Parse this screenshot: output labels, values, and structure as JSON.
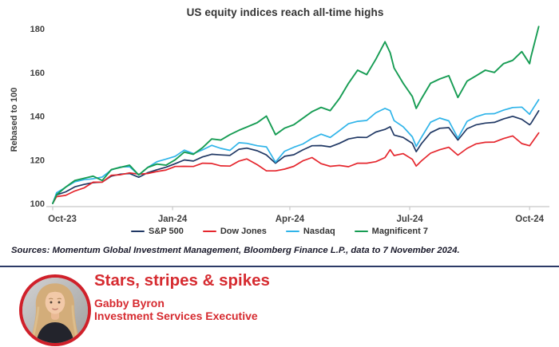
{
  "chart": {
    "title": "US equity indices reach all-time highs",
    "sources": "Sources: Momentum Global Investment Management, Bloomberg Finance L.P., data to 7 November 2024."
  },
  "chart_data": {
    "type": "line",
    "title": "US equity indices reach all-time highs",
    "xlabel": "",
    "ylabel": "Rebased to 100",
    "ylim": [
      98.5,
      185
    ],
    "yticks": [
      100,
      120,
      140,
      160,
      180
    ],
    "grid": false,
    "legend_position": "bottom-center",
    "axis_color": "#c8c8c8",
    "tick_label_color": "#404040",
    "x_span_days": 373,
    "xticks": [
      {
        "label": "Oct-23",
        "day": 0
      },
      {
        "label": "Jan-24",
        "day": 92
      },
      {
        "label": "Apr-24",
        "day": 182
      },
      {
        "label": "Jul-24",
        "day": 274
      },
      {
        "label": "Oct-24",
        "day": 366
      }
    ],
    "days": [
      0,
      3,
      10,
      17,
      24,
      31,
      38,
      45,
      52,
      59,
      66,
      73,
      80,
      87,
      94,
      101,
      108,
      115,
      122,
      129,
      136,
      143,
      149,
      157,
      164,
      171,
      178,
      185,
      192,
      199,
      206,
      213,
      220,
      227,
      234,
      241,
      248,
      255,
      259,
      262,
      269,
      276,
      279,
      283,
      290,
      297,
      304,
      311,
      318,
      325,
      332,
      339,
      346,
      353,
      360,
      366,
      367,
      373
    ],
    "series": [
      {
        "name": "S&P 500",
        "color": "#203864",
        "values": [
          100,
          103.9,
          105.3,
          107.6,
          108.7,
          109.5,
          109.8,
          112.5,
          113.4,
          113.7,
          112,
          114.1,
          115.4,
          116.6,
          118.2,
          119.9,
          119.4,
          121.3,
          122.5,
          122.2,
          122,
          124.8,
          125.3,
          124.1,
          122.2,
          118.4,
          121.6,
          122.3,
          124.5,
          126.4,
          126.5,
          125.9,
          127.5,
          129.5,
          130.3,
          130.2,
          132.7,
          133.9,
          135.1,
          131.3,
          130.2,
          127.5,
          123.7,
          127.4,
          132.4,
          134.4,
          134.7,
          129,
          134.2,
          136,
          136.8,
          137.1,
          138.7,
          139.9,
          138.5,
          136,
          136.6,
          142.4
        ]
      },
      {
        "name": "Dow Jones",
        "color": "#e5262d",
        "values": [
          100,
          103.1,
          103.7,
          105.7,
          107.1,
          109.7,
          109.7,
          112.9,
          113.1,
          114,
          113.4,
          113.7,
          114.6,
          115.3,
          116.9,
          117,
          116.9,
          118.4,
          118.3,
          117.2,
          117.1,
          119.4,
          120.4,
          117.7,
          114.9,
          114.9,
          115.7,
          117,
          119.5,
          121,
          118.2,
          117,
          117.4,
          116.8,
          118.4,
          118.4,
          119.1,
          121,
          124.6,
          121.9,
          122.8,
          120.2,
          117.1,
          119.5,
          123,
          124.6,
          125.7,
          122.1,
          125.2,
          127.3,
          128,
          128.1,
          129.7,
          130.9,
          127.4,
          126.4,
          127.2,
          132.3
        ]
      },
      {
        "name": "Nasdaq",
        "color": "#2fb4e9",
        "values": [
          100,
          104.9,
          107.4,
          109.9,
          110.9,
          111.3,
          112.1,
          115.3,
          116.7,
          116.8,
          113,
          116.5,
          119.1,
          120.3,
          121.6,
          124.4,
          122.8,
          124.5,
          126.6,
          125.2,
          124.3,
          127.8,
          127.5,
          126.4,
          125.9,
          118.9,
          123.9,
          125.7,
          127.2,
          129.8,
          131.7,
          130.2,
          133.3,
          136.5,
          137.6,
          138,
          141.5,
          143.5,
          142.5,
          137.9,
          135.1,
          130.5,
          126.1,
          130.3,
          137.2,
          139.1,
          137.8,
          129.9,
          137.6,
          139.7,
          141,
          141.1,
          142.7,
          143.9,
          144.1,
          140.8,
          141.9,
          147.5
        ]
      },
      {
        "name": "Magnificent 7",
        "color": "#169c53",
        "values": [
          100,
          104,
          107.5,
          110.5,
          111.5,
          112.5,
          110.5,
          115.5,
          116.5,
          117.5,
          113,
          116.5,
          118,
          117.5,
          120,
          123.5,
          122.5,
          125.5,
          129.5,
          129,
          131.5,
          133.5,
          135,
          137,
          140,
          131.5,
          134.5,
          136,
          139,
          142,
          144,
          142.5,
          148,
          155,
          161,
          159,
          166,
          174,
          169,
          162,
          155,
          149,
          143.5,
          148,
          155,
          157,
          158.5,
          148.5,
          156,
          158.5,
          161,
          160,
          164,
          165.5,
          169.5,
          164,
          167,
          181
        ]
      }
    ]
  },
  "byline": {
    "title": "Stars, stripes & spikes",
    "name": "Gabby Byron",
    "role": "Investment Services Executive",
    "accent_color": "#d62b30",
    "divider_color": "#2c3a67"
  }
}
